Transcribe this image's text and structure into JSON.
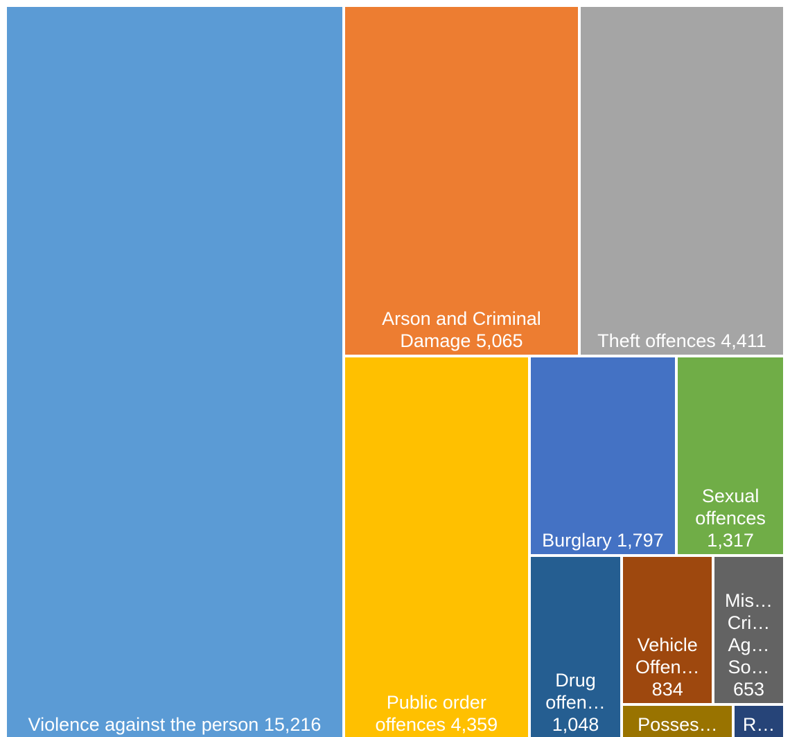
{
  "chart_data": {
    "type": "treemap",
    "categories": [
      "Violence against the person",
      "Arson and Criminal Damage",
      "Theft offences",
      "Public order offences",
      "Burglary",
      "Sexual offences",
      "Drug offen…",
      "Vehicle Offen…",
      "Mis… Cri… Ag… So…",
      "Posses…",
      "R…"
    ],
    "values": [
      15216,
      5065,
      4411,
      4359,
      1797,
      1317,
      1048,
      834,
      653,
      240,
      110
    ],
    "value_labels": [
      "15,216",
      "5,065",
      "4,411",
      "4,359",
      "1,797",
      "1,317",
      "1,048",
      "834",
      "653",
      null,
      null
    ],
    "colors": [
      "#5b9bd5",
      "#ed7d31",
      "#a5a5a5",
      "#ffc000",
      "#4472c4",
      "#70ad47",
      "#255e91",
      "#9e480e",
      "#636363",
      "#997300",
      "#264478"
    ]
  }
}
